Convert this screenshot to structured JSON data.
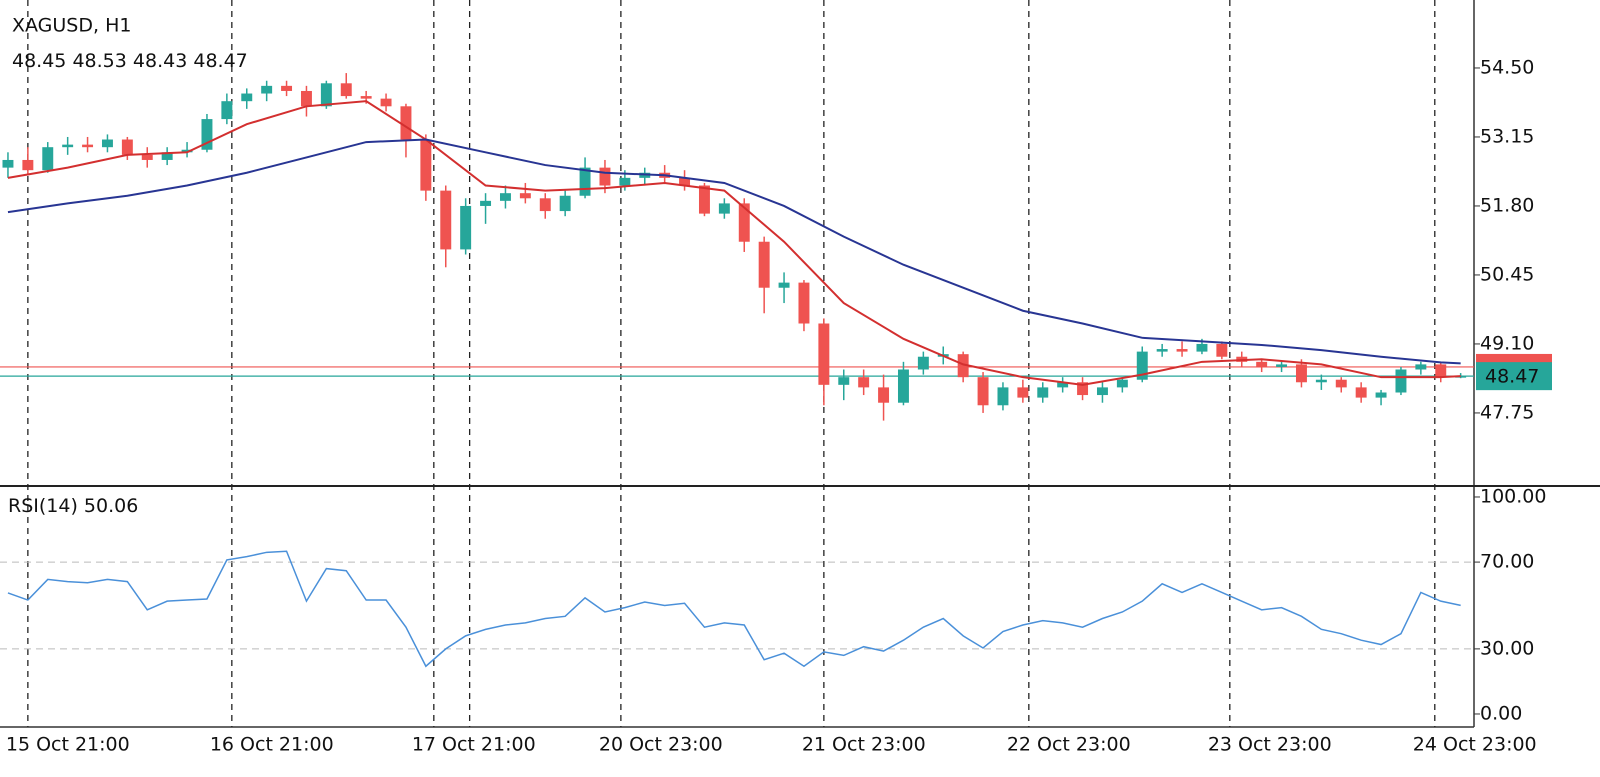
{
  "chart_data": [
    {
      "type": "candlestick",
      "title": "XAGUSD, H1",
      "open": [
        52.55,
        52.7,
        52.5,
        52.95,
        53.0,
        52.95,
        53.1,
        52.8,
        52.7,
        52.85,
        52.9,
        53.5,
        53.85,
        54.0,
        54.15,
        54.05,
        53.75,
        54.2,
        53.95,
        53.9,
        53.75,
        53.1,
        52.1,
        50.95,
        51.8,
        51.9,
        52.05,
        51.95,
        51.7,
        52.0,
        52.55,
        52.2,
        52.35,
        52.45,
        52.35,
        52.2,
        51.65,
        51.85,
        51.1,
        50.2,
        50.3,
        49.5,
        48.3,
        48.45,
        48.25,
        47.95,
        48.6,
        48.85,
        48.9,
        48.45,
        47.9,
        48.25,
        48.05,
        48.25,
        48.35,
        48.1,
        48.25,
        48.4,
        48.95,
        49.0,
        48.95,
        49.1,
        48.85,
        48.75,
        48.65,
        48.7,
        48.35,
        48.4,
        48.25,
        48.05,
        48.15,
        48.6,
        48.7,
        48.45
      ],
      "high": [
        52.85,
        52.95,
        53.05,
        53.15,
        53.15,
        53.2,
        53.15,
        52.95,
        52.95,
        53.05,
        53.6,
        54.0,
        54.1,
        54.25,
        54.25,
        54.15,
        54.25,
        54.4,
        54.05,
        54.0,
        53.8,
        53.2,
        52.2,
        51.95,
        52.05,
        52.2,
        52.25,
        52.05,
        52.1,
        52.75,
        52.7,
        52.5,
        52.55,
        52.6,
        52.5,
        52.25,
        51.95,
        51.95,
        51.2,
        50.5,
        50.35,
        49.6,
        48.6,
        48.6,
        48.5,
        48.75,
        48.95,
        49.05,
        48.95,
        48.55,
        48.35,
        48.4,
        48.35,
        48.45,
        48.45,
        48.35,
        48.45,
        49.05,
        49.1,
        49.15,
        49.2,
        49.15,
        48.95,
        48.8,
        48.75,
        48.8,
        48.5,
        48.45,
        48.35,
        48.2,
        48.65,
        48.75,
        48.75,
        48.53
      ],
      "low": [
        52.35,
        52.4,
        52.45,
        52.8,
        52.85,
        52.85,
        52.7,
        52.55,
        52.6,
        52.75,
        52.85,
        53.4,
        53.7,
        53.85,
        53.95,
        53.55,
        53.7,
        53.9,
        53.8,
        53.65,
        52.75,
        51.9,
        50.6,
        50.85,
        51.45,
        51.75,
        51.85,
        51.55,
        51.6,
        51.95,
        52.05,
        52.1,
        52.2,
        52.25,
        52.1,
        51.6,
        51.55,
        50.9,
        49.7,
        49.9,
        49.35,
        47.9,
        48.0,
        48.1,
        47.6,
        47.9,
        48.5,
        48.7,
        48.35,
        47.75,
        47.8,
        47.95,
        47.95,
        48.15,
        48.0,
        47.95,
        48.15,
        48.35,
        48.85,
        48.85,
        48.9,
        48.8,
        48.65,
        48.55,
        48.55,
        48.25,
        48.2,
        48.15,
        47.95,
        47.9,
        48.1,
        48.5,
        48.35,
        48.43
      ],
      "close": [
        52.7,
        52.5,
        52.95,
        53.0,
        52.95,
        53.1,
        52.8,
        52.7,
        52.85,
        52.9,
        53.5,
        53.85,
        54.0,
        54.15,
        54.05,
        53.75,
        54.2,
        53.95,
        53.9,
        53.75,
        53.1,
        52.1,
        50.95,
        51.8,
        51.9,
        52.05,
        51.95,
        51.7,
        52.0,
        52.55,
        52.2,
        52.35,
        52.45,
        52.35,
        52.2,
        51.65,
        51.85,
        51.1,
        50.2,
        50.3,
        49.5,
        48.3,
        48.45,
        48.25,
        47.95,
        48.6,
        48.85,
        48.9,
        48.45,
        47.9,
        48.25,
        48.05,
        48.25,
        48.35,
        48.1,
        48.25,
        48.4,
        48.95,
        49.0,
        48.95,
        49.1,
        48.85,
        48.75,
        48.65,
        48.7,
        48.35,
        48.4,
        48.25,
        48.05,
        48.15,
        48.6,
        48.7,
        48.45,
        48.47
      ],
      "up_color": "#26a69a",
      "down_color": "#ef5350",
      "series": [
        {
          "color": "#d32f2f",
          "x": [
            0,
            3,
            6,
            9,
            12,
            15,
            18,
            21,
            24,
            27,
            30,
            33,
            36,
            39,
            42,
            45,
            48,
            51,
            54,
            57,
            60,
            63,
            66,
            69,
            72,
            73
          ],
          "values": [
            52.35,
            52.55,
            52.8,
            52.85,
            53.4,
            53.75,
            53.85,
            53.1,
            52.2,
            52.1,
            52.15,
            52.25,
            52.1,
            51.1,
            49.9,
            49.2,
            48.7,
            48.45,
            48.3,
            48.5,
            48.75,
            48.8,
            48.7,
            48.45,
            48.45,
            48.47
          ]
        },
        {
          "color": "#283593",
          "x": [
            0,
            3,
            6,
            9,
            12,
            15,
            18,
            21,
            24,
            27,
            30,
            33,
            36,
            39,
            42,
            45,
            48,
            51,
            54,
            57,
            60,
            63,
            66,
            69,
            72,
            73
          ],
          "values": [
            51.68,
            51.85,
            52.0,
            52.2,
            52.45,
            52.75,
            53.05,
            53.1,
            52.85,
            52.6,
            52.45,
            52.4,
            52.25,
            51.8,
            51.2,
            50.65,
            50.2,
            49.75,
            49.5,
            49.22,
            49.15,
            49.08,
            48.98,
            48.85,
            48.74,
            48.72
          ]
        }
      ],
      "ask_line": {
        "value": 48.65,
        "color": "#ef5350"
      },
      "bid_line": {
        "value": 48.47,
        "color": "#26a69a"
      },
      "xlim": [
        -0.4,
        73.57
      ],
      "xticks": [
        {
          "value": 1,
          "label": "15 Oct 21:00"
        },
        {
          "value": 11.25,
          "label": "16 Oct 21:00"
        },
        {
          "value": 21.4,
          "label": "17 Oct 21:00"
        },
        {
          "value": 23.2,
          "label": null
        },
        {
          "value": 30.8,
          "label": "20 Oct 23:00"
        },
        {
          "value": 41,
          "label": "21 Oct 23:00"
        },
        {
          "value": 51.3,
          "label": "22 Oct 23:00"
        },
        {
          "value": 61.4,
          "label": "23 Oct 23:00"
        },
        {
          "value": 71.7,
          "label": "24 Oct 23:00"
        }
      ],
      "ylim": [
        46.34,
        55.83
      ],
      "yticks": [
        47.75,
        {
          "value": 49.1,
          "label": "49.10"
        },
        {
          "value": 50.45,
          "label": "50.45"
        },
        {
          "value": 51.8,
          "label": "51.80"
        },
        {
          "value": 53.15,
          "label": "53.15"
        },
        {
          "value": 54.5,
          "label": "54.50"
        }
      ]
    },
    {
      "type": "line",
      "title": "RSI(14)",
      "color": "#4a90d9",
      "values": [
        55.8,
        52.5,
        62,
        61,
        60.5,
        62,
        61,
        48,
        52,
        52.5,
        53,
        71,
        72.5,
        74.5,
        75,
        52,
        67,
        66,
        52.5,
        52.5,
        40,
        22,
        30,
        36,
        39,
        41,
        42,
        44,
        45,
        53.5,
        47,
        49,
        51.6,
        50,
        51,
        40,
        42,
        41,
        25,
        28,
        22,
        28.6,
        27,
        31,
        29,
        34,
        40,
        44,
        36,
        30.4,
        38,
        41,
        43,
        42,
        40,
        44,
        47,
        52,
        60,
        56,
        60,
        56,
        52,
        48,
        49,
        45,
        39,
        37,
        34,
        32,
        37,
        56,
        52,
        50.06
      ],
      "ylim": [
        -6,
        104.6
      ],
      "yticks": [
        {
          "value": 0,
          "label": "0.00"
        },
        {
          "value": 30,
          "label": "30.00"
        },
        {
          "value": 70,
          "label": "70.00"
        },
        {
          "value": 100,
          "label": "100.00"
        }
      ],
      "levels": [
        30,
        70
      ]
    }
  ]
}
